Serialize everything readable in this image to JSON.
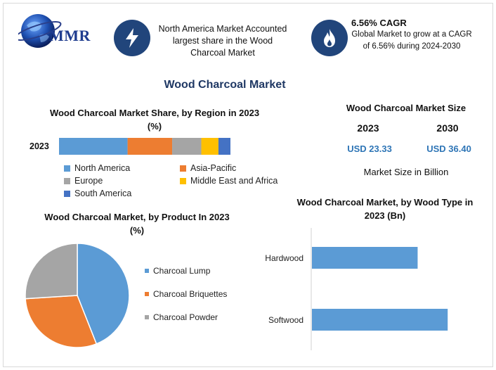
{
  "brand": {
    "logo_text": "MMR"
  },
  "highlights": {
    "north_america": "North America Market Accounted largest share in the Wood Charcoal Market",
    "cagr_title": "6.56% CAGR",
    "cagr_text": "Global Market to grow at a CAGR of 6.56% during 2024-2030"
  },
  "main_title": "Wood Charcoal Market",
  "market_size": {
    "title": "Wood Charcoal Market Size",
    "years": [
      "2023",
      "2030"
    ],
    "values": [
      "USD 23.33",
      "USD 36.40"
    ],
    "note": "Market Size in Billion"
  },
  "colors": {
    "north_america": "#5b9bd5",
    "asia_pacific": "#ed7d31",
    "europe": "#a5a5a5",
    "middle_east_africa": "#ffc000",
    "south_america": "#4472c4",
    "header_icon": "#21457b",
    "title": "#1f3864"
  },
  "icons": [
    "lightning-icon",
    "flame-icon",
    "globe-icon"
  ],
  "chart_data": [
    {
      "type": "bar",
      "orientation": "horizontal-stacked",
      "title": "Wood Charcoal Market Share, by Region in 2023 (%)",
      "categories": [
        "2023"
      ],
      "series": [
        {
          "name": "North America",
          "values": [
            40
          ]
        },
        {
          "name": "Asia-Pacific",
          "values": [
            26
          ]
        },
        {
          "name": "Europe",
          "values": [
            17
          ]
        },
        {
          "name": "Middle East and Africa",
          "values": [
            10
          ]
        },
        {
          "name": "South America",
          "values": [
            7
          ]
        }
      ],
      "legend": "bottom"
    },
    {
      "type": "pie",
      "title": "Wood Charcoal Market, by Product In 2023 (%)",
      "labels": [
        "Charcoal Lump",
        "Charcoal Briquettes",
        "Charcoal Powder"
      ],
      "values": [
        44,
        30,
        26
      ],
      "legend": "right"
    },
    {
      "type": "bar",
      "orientation": "horizontal",
      "title": "Wood Charcoal Market, by Wood Type in 2023 (Bn)",
      "categories": [
        "Hardwood",
        "Softwood"
      ],
      "values": [
        10.2,
        13.1
      ],
      "xlim": [
        0,
        16
      ],
      "grid": false
    }
  ]
}
